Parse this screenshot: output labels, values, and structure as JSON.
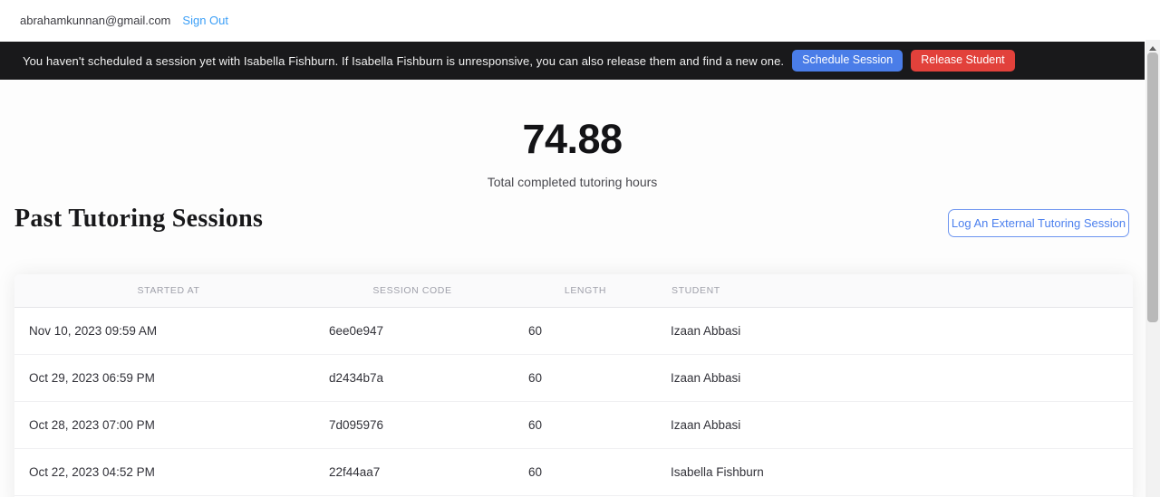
{
  "topbar": {
    "email": "abrahamkunnan@gmail.com",
    "sign_out_label": "Sign Out"
  },
  "banner": {
    "message": "You haven't scheduled a session yet with Isabella Fishburn. If Isabella Fishburn is unresponsive, you can also release them and find a new one.",
    "schedule_button_label": "Schedule Session",
    "release_button_label": "Release Student",
    "background_color": "#19191b",
    "schedule_button_color": "#4a7de8",
    "release_button_color": "#e2413b"
  },
  "stats": {
    "total_hours": "74.88",
    "total_hours_label": "Total completed tutoring hours"
  },
  "sessions": {
    "title": "Past Tutoring Sessions",
    "log_button_label": "Log An External Tutoring Session",
    "log_button_color": "#4c80ee",
    "table": {
      "columns": [
        "STARTED AT",
        "SESSION CODE",
        "LENGTH",
        "STUDENT"
      ],
      "rows": [
        {
          "started_at": "Nov 10, 2023 09:59 AM",
          "session_code": "6ee0e947",
          "length": "60",
          "student": "Izaan Abbasi"
        },
        {
          "started_at": "Oct 29, 2023 06:59 PM",
          "session_code": "d2434b7a",
          "length": "60",
          "student": "Izaan Abbasi"
        },
        {
          "started_at": "Oct 28, 2023 07:00 PM",
          "session_code": "7d095976",
          "length": "60",
          "student": "Izaan Abbasi"
        },
        {
          "started_at": "Oct 22, 2023 04:52 PM",
          "session_code": "22f44aa7",
          "length": "60",
          "student": "Isabella Fishburn"
        }
      ]
    }
  },
  "icons": {
    "scroll_up_icon": "triangle-up"
  }
}
